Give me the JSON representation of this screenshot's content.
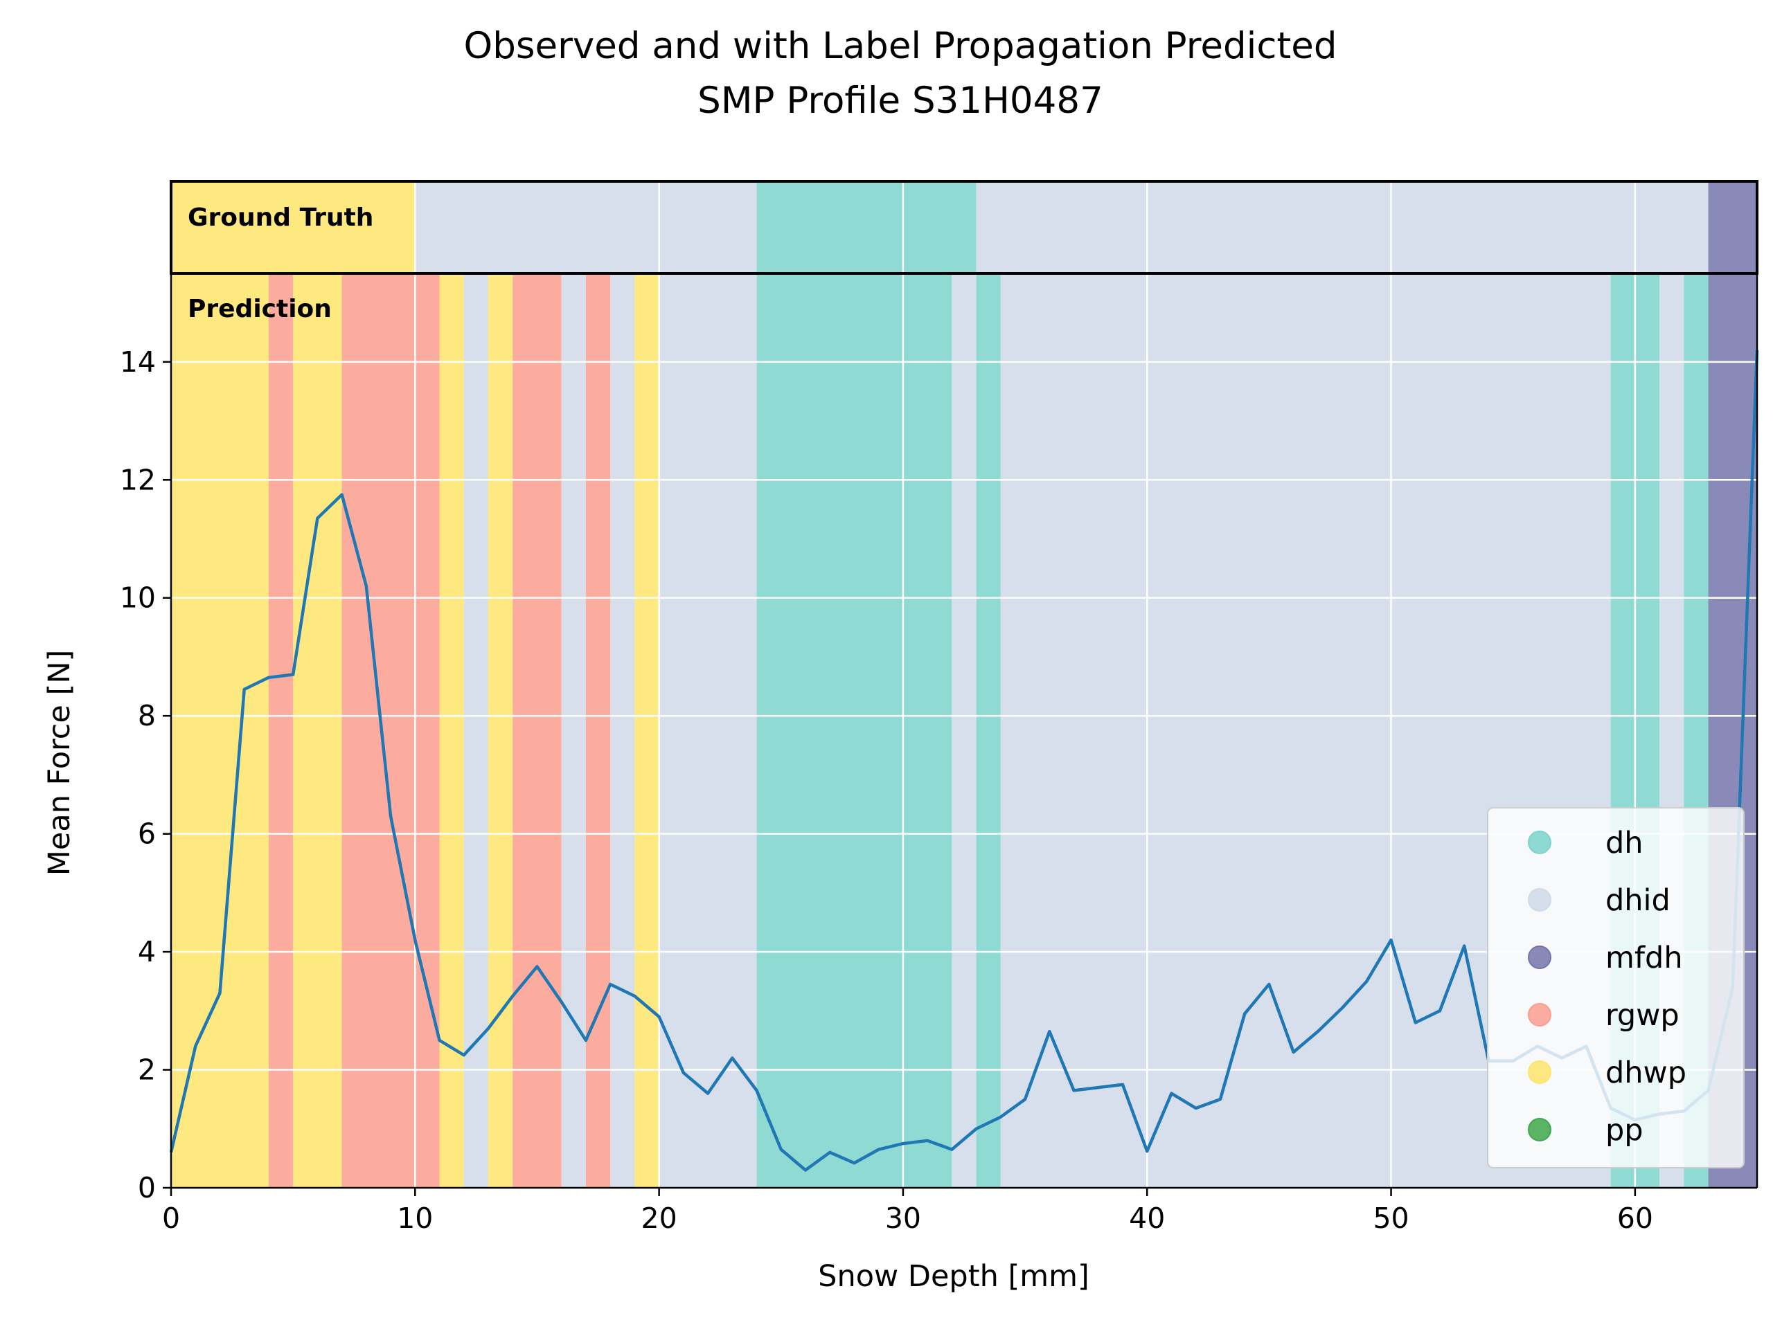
{
  "chart_data": {
    "type": "line",
    "title": "Observed and with Label Propagation Predicted",
    "subtitle": "SMP Profile S31H0487",
    "xlabel": "Snow Depth [mm]",
    "ylabel": "Mean Force [N]",
    "xlim": [
      0,
      65
    ],
    "ylim": [
      0,
      15.5
    ],
    "truth_band_ylim": [
      15.5,
      17.1
    ],
    "xticks": [
      0,
      10,
      20,
      30,
      40,
      50,
      60
    ],
    "yticks": [
      0,
      2,
      4,
      6,
      8,
      10,
      12,
      14
    ],
    "grid": true,
    "panel_labels": {
      "ground_truth": "Ground Truth",
      "prediction": "Prediction"
    },
    "legend_position": "lower-right",
    "grain_types": [
      {
        "name": "dh",
        "color": "#7dd3cd"
      },
      {
        "name": "dhid",
        "color": "#cfd9e8"
      },
      {
        "name": "mfdh",
        "color": "#7575ab"
      },
      {
        "name": "rgwp",
        "color": "#fb9e8e"
      },
      {
        "name": "dhwp",
        "color": "#fee46a"
      },
      {
        "name": "pp",
        "color": "#3fa84a"
      }
    ],
    "ground_truth_segments": [
      {
        "from": 0,
        "to": 10,
        "type": "dhwp"
      },
      {
        "from": 10,
        "to": 24,
        "type": "dhid"
      },
      {
        "from": 24,
        "to": 33,
        "type": "dh"
      },
      {
        "from": 33,
        "to": 63,
        "type": "dhid"
      },
      {
        "from": 63,
        "to": 65,
        "type": "mfdh"
      }
    ],
    "prediction_segments": [
      {
        "from": 0,
        "to": 4,
        "type": "dhwp"
      },
      {
        "from": 4,
        "to": 5,
        "type": "rgwp"
      },
      {
        "from": 5,
        "to": 7,
        "type": "dhwp"
      },
      {
        "from": 7,
        "to": 11,
        "type": "rgwp"
      },
      {
        "from": 11,
        "to": 12,
        "type": "dhwp"
      },
      {
        "from": 12,
        "to": 13,
        "type": "dhid"
      },
      {
        "from": 13,
        "to": 14,
        "type": "dhwp"
      },
      {
        "from": 14,
        "to": 16,
        "type": "rgwp"
      },
      {
        "from": 16,
        "to": 17,
        "type": "dhid"
      },
      {
        "from": 17,
        "to": 18,
        "type": "rgwp"
      },
      {
        "from": 18,
        "to": 19,
        "type": "dhid"
      },
      {
        "from": 19,
        "to": 20,
        "type": "dhwp"
      },
      {
        "from": 20,
        "to": 24,
        "type": "dhid"
      },
      {
        "from": 24,
        "to": 32,
        "type": "dh"
      },
      {
        "from": 32,
        "to": 33,
        "type": "dhid"
      },
      {
        "from": 33,
        "to": 34,
        "type": "dh"
      },
      {
        "from": 34,
        "to": 59,
        "type": "dhid"
      },
      {
        "from": 59,
        "to": 61,
        "type": "dh"
      },
      {
        "from": 61,
        "to": 62,
        "type": "dhid"
      },
      {
        "from": 62,
        "to": 63,
        "type": "dh"
      },
      {
        "from": 63,
        "to": 65,
        "type": "mfdh"
      }
    ],
    "series": [
      {
        "color": "#1f77b4",
        "x": [
          0,
          1,
          2,
          3,
          4,
          5,
          6,
          7,
          8,
          9,
          10,
          11,
          12,
          13,
          14,
          15,
          16,
          17,
          18,
          19,
          20,
          21,
          22,
          23,
          24,
          25,
          26,
          27,
          28,
          29,
          30,
          31,
          32,
          33,
          34,
          35,
          36,
          37,
          38,
          39,
          40,
          41,
          42,
          43,
          44,
          45,
          46,
          47,
          48,
          49,
          50,
          51,
          52,
          53,
          54,
          55,
          56,
          57,
          58,
          59,
          60,
          61,
          62,
          63,
          64,
          65
        ],
        "y": [
          0.6,
          2.4,
          3.3,
          8.45,
          8.65,
          8.7,
          11.35,
          11.75,
          10.2,
          6.3,
          4.2,
          2.5,
          2.25,
          2.7,
          3.25,
          3.75,
          3.15,
          2.5,
          3.45,
          3.25,
          2.9,
          1.95,
          1.6,
          2.2,
          1.65,
          0.65,
          0.3,
          0.6,
          0.42,
          0.65,
          0.75,
          0.8,
          0.65,
          1.0,
          1.2,
          1.5,
          2.65,
          1.65,
          1.7,
          1.75,
          0.62,
          1.6,
          1.35,
          1.5,
          2.95,
          3.45,
          2.3,
          2.65,
          3.05,
          3.5,
          4.2,
          2.8,
          3.0,
          4.1,
          2.15,
          2.15,
          2.4,
          2.2,
          2.4,
          1.35,
          1.15,
          1.25,
          1.3,
          1.65,
          3.4,
          14.2
        ]
      }
    ]
  }
}
